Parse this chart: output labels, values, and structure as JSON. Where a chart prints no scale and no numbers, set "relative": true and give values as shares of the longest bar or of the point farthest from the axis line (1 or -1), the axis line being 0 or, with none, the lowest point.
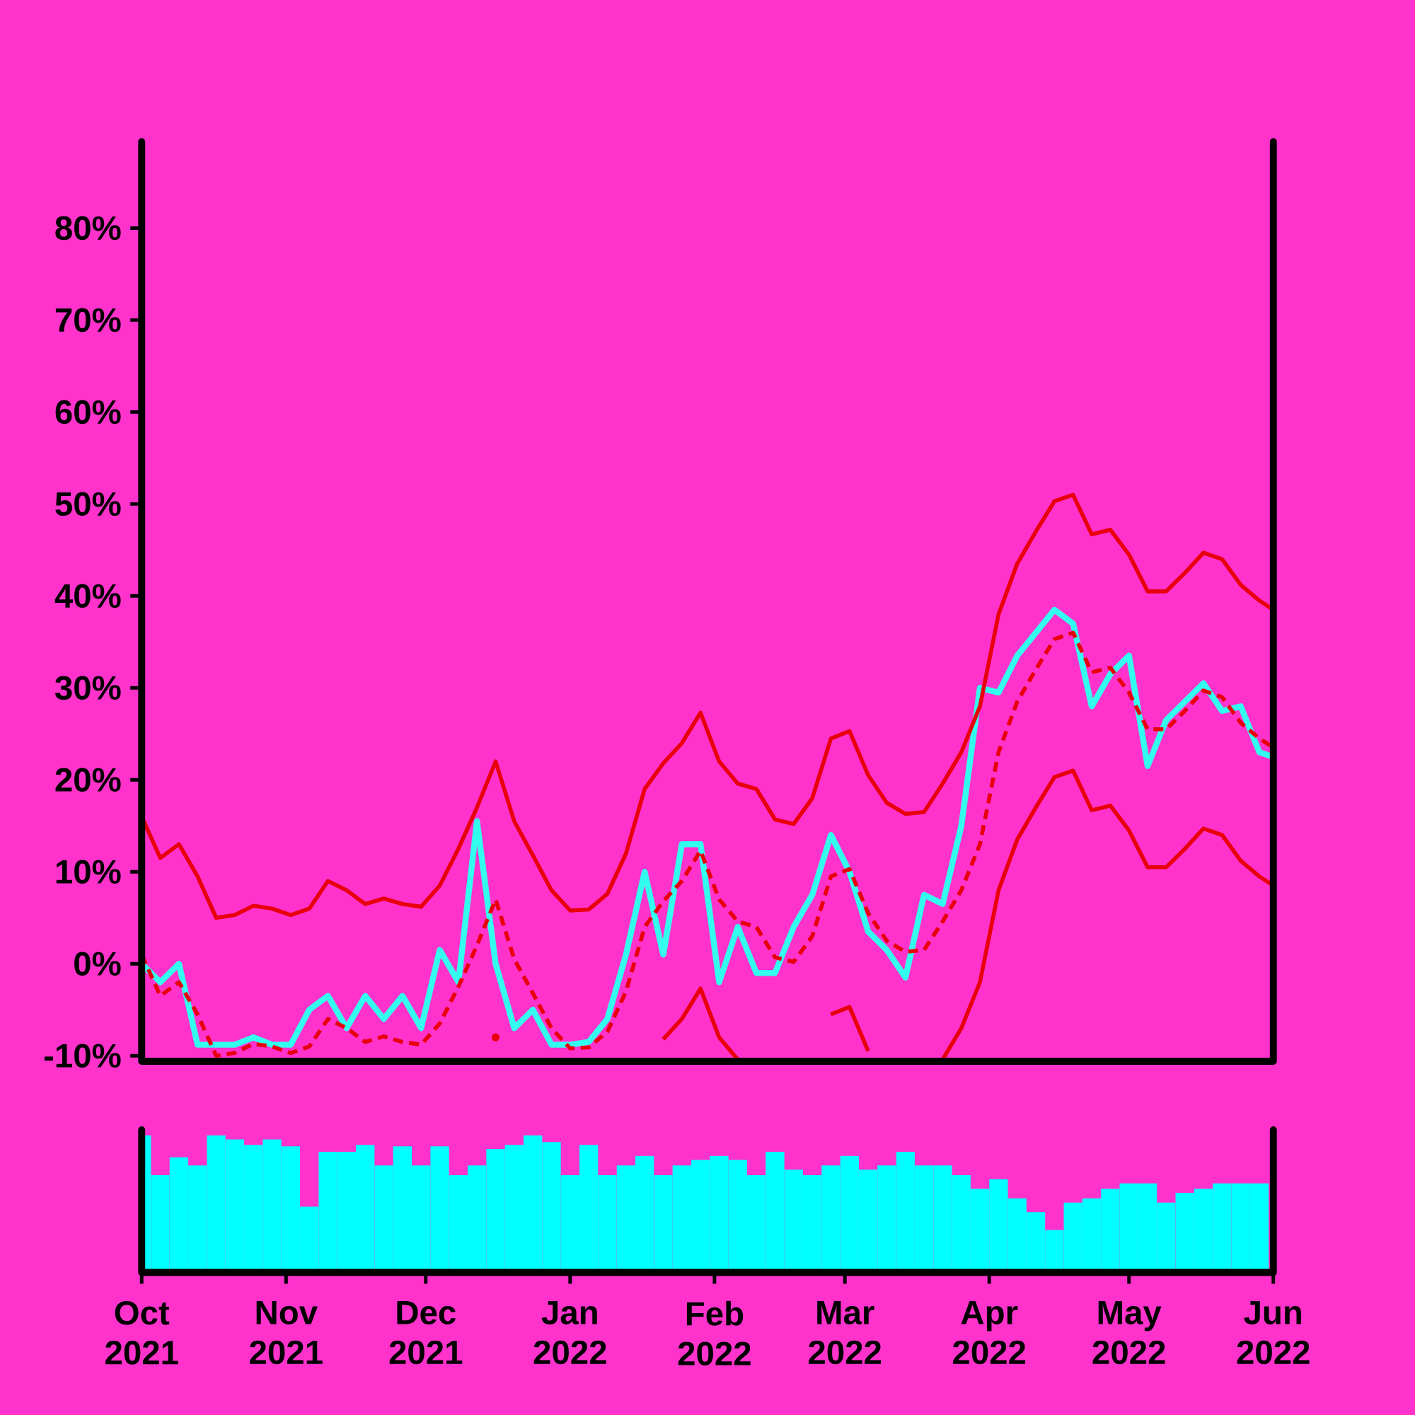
{
  "chart_data": [
    {
      "type": "line",
      "tick_labels": "y",
      "xlim": [
        "2021-10-01",
        "2022-06-01"
      ],
      "ylim": [
        -10.6,
        89.4
      ],
      "yticks": [
        {
          "value": -10,
          "label": "-10%"
        },
        {
          "value": 0,
          "label": "0%"
        },
        {
          "value": 10,
          "label": "10%"
        },
        {
          "value": 20,
          "label": "20%"
        },
        {
          "value": 30,
          "label": "30%"
        },
        {
          "value": 40,
          "label": "40%"
        },
        {
          "value": 50,
          "label": "50%"
        },
        {
          "value": 60,
          "label": "60%"
        },
        {
          "value": 70,
          "label": "70%"
        },
        {
          "value": 80,
          "label": "80%"
        }
      ],
      "x": [
        "2021-10-01",
        "2021-10-05",
        "2021-10-09",
        "2021-10-13",
        "2021-10-17",
        "2021-10-21",
        "2021-10-25",
        "2021-10-29",
        "2021-11-02",
        "2021-11-06",
        "2021-11-10",
        "2021-11-14",
        "2021-11-18",
        "2021-11-22",
        "2021-11-26",
        "2021-11-30",
        "2021-12-04",
        "2021-12-08",
        "2021-12-12",
        "2021-12-16",
        "2021-12-20",
        "2021-12-24",
        "2021-12-28",
        "2022-01-01",
        "2022-01-05",
        "2022-01-09",
        "2022-01-13",
        "2022-01-17",
        "2022-01-21",
        "2022-01-25",
        "2022-01-29",
        "2022-02-02",
        "2022-02-06",
        "2022-02-10",
        "2022-02-14",
        "2022-02-18",
        "2022-02-22",
        "2022-02-26",
        "2022-03-02",
        "2022-03-06",
        "2022-03-10",
        "2022-03-14",
        "2022-03-18",
        "2022-03-22",
        "2022-03-26",
        "2022-03-30",
        "2022-04-03",
        "2022-04-07",
        "2022-04-11",
        "2022-04-15",
        "2022-04-19",
        "2022-04-23",
        "2022-04-27",
        "2022-05-01",
        "2022-05-05",
        "2022-05-09",
        "2022-05-13",
        "2022-05-17",
        "2022-05-21",
        "2022-05-25",
        "2022-05-29",
        "2022-06-01"
      ],
      "series": [
        {
          "color": "#33ffee",
          "values": [
            0,
            -2,
            0,
            -8.8,
            -8.8,
            -8.8,
            -8,
            -8.8,
            -8.8,
            -5,
            -3.5,
            -7,
            -3.5,
            -6,
            -3.5,
            -7,
            1.5,
            -2,
            15.5,
            0,
            -7,
            -5,
            -8.8,
            -8.8,
            -8.5,
            -6,
            1,
            10,
            1,
            13,
            13,
            -2,
            4,
            -1,
            -1,
            4,
            7.5,
            14,
            10,
            3.5,
            1.5,
            -1.5,
            7.5,
            6.5,
            15,
            30,
            29.5,
            33.5,
            36,
            38.5,
            37,
            28,
            31.5,
            33.5,
            21.5,
            26.5,
            28.5,
            30.5,
            27.5,
            28,
            23,
            22.5
          ]
        },
        {
          "color": "#e8000b",
          "line_style": "dashed",
          "values": [
            1,
            -3.5,
            -2,
            -5.5,
            -10,
            -9.7,
            -8.7,
            -9,
            -9.7,
            -9,
            -6,
            -7,
            -8.5,
            -7.9,
            -8.5,
            -8.8,
            -6.5,
            -2.5,
            2,
            7,
            0.5,
            -3.2,
            -7,
            -9.2,
            -9.1,
            -7.4,
            -3,
            4,
            6.8,
            9,
            12.3,
            7,
            4.6,
            4,
            0.7,
            0.2,
            3,
            9.5,
            10.3,
            5.5,
            2.5,
            1.3,
            1.5,
            4.6,
            8,
            13,
            23,
            28.5,
            32,
            35.3,
            36,
            31.7,
            32.2,
            29.5,
            25.5,
            25.5,
            27.5,
            29.7,
            29,
            26.2,
            24.5,
            23.5
          ]
        },
        {
          "color": "#e8000b",
          "values": [
            null,
            null,
            null,
            null,
            null,
            null,
            null,
            null,
            null,
            null,
            null,
            null,
            null,
            null,
            null,
            null,
            null,
            null,
            null,
            -8,
            null,
            null,
            null,
            null,
            null,
            null,
            null,
            null,
            -8.2,
            -6,
            -2.7,
            -8,
            -10.4,
            null,
            null,
            null,
            null,
            -5.5,
            -4.7,
            -9.5,
            null,
            null,
            null,
            -10.4,
            -7,
            -2,
            8,
            13.5,
            17,
            20.3,
            21,
            16.7,
            17.2,
            14.5,
            10.5,
            10.5,
            12.5,
            14.7,
            14,
            11.2,
            9.5,
            8.5
          ]
        },
        {
          "color": "#e8000b",
          "values": [
            16,
            11.5,
            13,
            9.5,
            5,
            5.3,
            6.3,
            6,
            5.3,
            6,
            9,
            8,
            6.5,
            7.1,
            6.5,
            6.2,
            8.5,
            12.5,
            17,
            22,
            15.5,
            11.8,
            8,
            5.8,
            5.9,
            7.6,
            12,
            19,
            21.8,
            24,
            27.3,
            22,
            19.6,
            19,
            15.7,
            15.2,
            18,
            24.5,
            25.3,
            20.5,
            17.5,
            16.3,
            16.5,
            19.6,
            23,
            28,
            38,
            43.5,
            47,
            50.3,
            51,
            46.7,
            47.2,
            44.5,
            40.5,
            40.5,
            42.5,
            44.7,
            44,
            41.2,
            39.5,
            38.5
          ]
        }
      ]
    },
    {
      "type": "bar",
      "relative": true,
      "tick_labels": "x",
      "color": "#00ffff",
      "xlim": [
        "2021-10-01",
        "2022-06-01"
      ],
      "xticks": [
        {
          "value": "2021-10-01",
          "label": "Oct 2021"
        },
        {
          "value": "2021-11-01",
          "label": "Nov 2021"
        },
        {
          "value": "2021-12-01",
          "label": "Dec 2021"
        },
        {
          "value": "2022-01-01",
          "label": "Jan 2022"
        },
        {
          "value": "2022-02-01",
          "label": "Feb 2022"
        },
        {
          "value": "2022-03-01",
          "label": "Mar 2022"
        },
        {
          "value": "2022-04-01",
          "label": "Apr 2022"
        },
        {
          "value": "2022-05-01",
          "label": "May 2022"
        },
        {
          "value": "2022-06-01",
          "label": "Jun 2022"
        }
      ],
      "x": [
        "2021-10-01",
        "2021-10-05",
        "2021-10-09",
        "2021-10-13",
        "2021-10-17",
        "2021-10-21",
        "2021-10-25",
        "2021-10-29",
        "2021-11-02",
        "2021-11-06",
        "2021-11-10",
        "2021-11-14",
        "2021-11-18",
        "2021-11-22",
        "2021-11-26",
        "2021-11-30",
        "2021-12-04",
        "2021-12-08",
        "2021-12-12",
        "2021-12-16",
        "2021-12-20",
        "2021-12-24",
        "2021-12-28",
        "2022-01-01",
        "2022-01-05",
        "2022-01-09",
        "2022-01-13",
        "2022-01-17",
        "2022-01-21",
        "2022-01-25",
        "2022-01-29",
        "2022-02-02",
        "2022-02-06",
        "2022-02-10",
        "2022-02-14",
        "2022-02-18",
        "2022-02-22",
        "2022-02-26",
        "2022-03-02",
        "2022-03-06",
        "2022-03-10",
        "2022-03-14",
        "2022-03-18",
        "2022-03-22",
        "2022-03-26",
        "2022-03-30",
        "2022-04-03",
        "2022-04-07",
        "2022-04-11",
        "2022-04-15",
        "2022-04-19",
        "2022-04-23",
        "2022-04-27",
        "2022-05-01",
        "2022-05-05",
        "2022-05-09",
        "2022-05-13",
        "2022-05-17",
        "2022-05-21",
        "2022-05-25",
        "2022-05-29"
      ],
      "values": [
        1,
        0.71,
        0.84,
        0.78,
        1,
        0.97,
        0.93,
        0.97,
        0.92,
        0.48,
        0.88,
        0.88,
        0.93,
        0.78,
        0.92,
        0.78,
        0.92,
        0.71,
        0.78,
        0.9,
        0.93,
        1,
        0.95,
        0.71,
        0.93,
        0.71,
        0.78,
        0.85,
        0.71,
        0.78,
        0.82,
        0.85,
        0.82,
        0.71,
        0.88,
        0.75,
        0.71,
        0.78,
        0.85,
        0.75,
        0.78,
        0.88,
        0.78,
        0.78,
        0.71,
        0.61,
        0.68,
        0.54,
        0.44,
        0.31,
        0.51,
        0.54,
        0.61,
        0.65,
        0.65,
        0.51,
        0.58,
        0.61,
        0.65,
        0.65,
        0.65
      ]
    }
  ]
}
